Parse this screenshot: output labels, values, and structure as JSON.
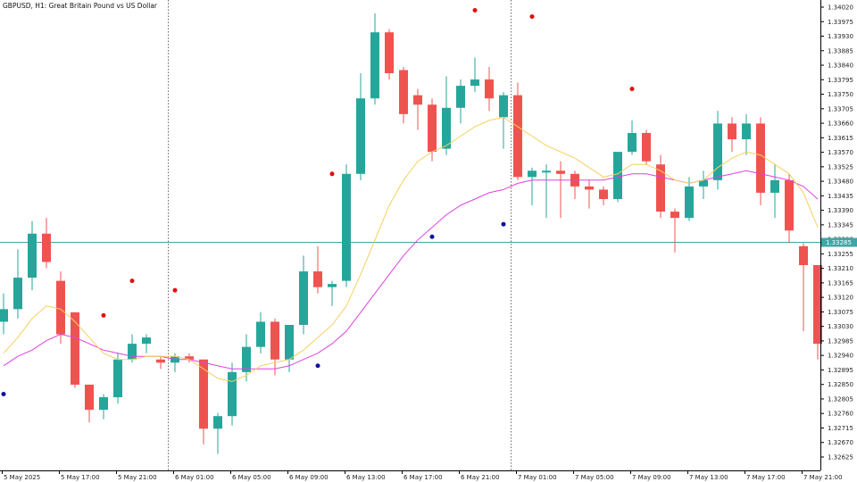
{
  "header": {
    "title": "GBPUSD, H1:  Great Britain Pound vs US Dollar"
  },
  "colors": {
    "background": "#ffffff",
    "bull": "#26a69a",
    "bear": "#ef5350",
    "fast_ma": "#f5d060",
    "slow_ma": "#e040e0",
    "bid_line": "#3fa6a6",
    "fractal_up": "#e01010",
    "fractal_down": "#1010a0",
    "separator": "#444444",
    "axis": "#000000"
  },
  "price_axis": {
    "labels": [
      "1.34020",
      "1.33975",
      "1.33930",
      "1.33885",
      "1.33840",
      "1.33795",
      "1.33750",
      "1.33705",
      "1.33660",
      "1.33615",
      "1.33570",
      "1.33525",
      "1.33480",
      "1.33435",
      "1.33390",
      "1.33345",
      "1.33300",
      "1.33255",
      "1.33210",
      "1.33165",
      "1.33120",
      "1.33075",
      "1.33030",
      "1.32985",
      "1.32940",
      "1.32895",
      "1.32850",
      "1.32805",
      "1.32760",
      "1.32715",
      "1.32670",
      "1.32625"
    ],
    "current_price": "1.33285"
  },
  "time_axis": {
    "labels": [
      "5 May 2025",
      "5 May 17:00",
      "5 May 21:00",
      "6 May 01:00",
      "6 May 05:00",
      "6 May 09:00",
      "6 May 13:00",
      "6 May 17:00",
      "6 May 21:00",
      "7 May 01:00",
      "7 May 05:00",
      "7 May 09:00",
      "7 May 13:00",
      "7 May 17:00",
      "7 May 21:00"
    ]
  },
  "chart_data": {
    "type": "candlestick",
    "symbol": "GBPUSD",
    "timeframe": "H1",
    "ylim": [
      1.326,
      1.3403
    ],
    "candles": [
      {
        "o": 1.3303,
        "h": 1.3312,
        "l": 1.3299,
        "c": 1.3307
      },
      {
        "o": 1.3307,
        "h": 1.3326,
        "l": 1.3304,
        "c": 1.3317
      },
      {
        "o": 1.3317,
        "h": 1.3335,
        "l": 1.3313,
        "c": 1.3331
      },
      {
        "o": 1.3331,
        "h": 1.3336,
        "l": 1.332,
        "c": 1.3322
      },
      {
        "o": 1.3316,
        "h": 1.3319,
        "l": 1.3296,
        "c": 1.3299
      },
      {
        "o": 1.3306,
        "h": 1.3306,
        "l": 1.3282,
        "c": 1.3283
      },
      {
        "o": 1.3283,
        "h": 1.3283,
        "l": 1.3271,
        "c": 1.3275
      },
      {
        "o": 1.3275,
        "h": 1.328,
        "l": 1.3272,
        "c": 1.3279
      },
      {
        "o": 1.3279,
        "h": 1.3293,
        "l": 1.3277,
        "c": 1.3291
      },
      {
        "o": 1.3291,
        "h": 1.3299,
        "l": 1.329,
        "c": 1.3296
      },
      {
        "o": 1.3296,
        "h": 1.3299,
        "l": 1.3293,
        "c": 1.3298
      },
      {
        "o": 1.3291,
        "h": 1.3292,
        "l": 1.3288,
        "c": 1.329
      },
      {
        "o": 1.329,
        "h": 1.3293,
        "l": 1.3287,
        "c": 1.3292
      },
      {
        "o": 1.3292,
        "h": 1.3293,
        "l": 1.329,
        "c": 1.3291
      },
      {
        "o": 1.3291,
        "h": 1.3291,
        "l": 1.3264,
        "c": 1.3269
      },
      {
        "o": 1.3269,
        "h": 1.3274,
        "l": 1.3261,
        "c": 1.3273
      },
      {
        "o": 1.3273,
        "h": 1.329,
        "l": 1.327,
        "c": 1.3287
      },
      {
        "o": 1.3287,
        "h": 1.3299,
        "l": 1.3284,
        "c": 1.3295
      },
      {
        "o": 1.3295,
        "h": 1.3306,
        "l": 1.3293,
        "c": 1.3303
      },
      {
        "o": 1.3303,
        "h": 1.3304,
        "l": 1.3286,
        "c": 1.3291
      },
      {
        "o": 1.3291,
        "h": 1.3302,
        "l": 1.3287,
        "c": 1.3302
      },
      {
        "o": 1.3302,
        "h": 1.3324,
        "l": 1.3299,
        "c": 1.3319
      },
      {
        "o": 1.3319,
        "h": 1.3327,
        "l": 1.3312,
        "c": 1.3314
      },
      {
        "o": 1.3314,
        "h": 1.3316,
        "l": 1.3308,
        "c": 1.3315
      },
      {
        "o": 1.3316,
        "h": 1.3353,
        "l": 1.3314,
        "c": 1.335
      },
      {
        "o": 1.335,
        "h": 1.3382,
        "l": 1.3348,
        "c": 1.3374
      },
      {
        "o": 1.3374,
        "h": 1.3401,
        "l": 1.3372,
        "c": 1.3395
      },
      {
        "o": 1.3395,
        "h": 1.3396,
        "l": 1.338,
        "c": 1.3382
      },
      {
        "o": 1.3383,
        "h": 1.3384,
        "l": 1.3366,
        "c": 1.3369
      },
      {
        "o": 1.3375,
        "h": 1.3377,
        "l": 1.3364,
        "c": 1.3372
      },
      {
        "o": 1.3372,
        "h": 1.3374,
        "l": 1.3354,
        "c": 1.3357
      },
      {
        "o": 1.3358,
        "h": 1.3381,
        "l": 1.3356,
        "c": 1.3371
      },
      {
        "o": 1.3371,
        "h": 1.338,
        "l": 1.3366,
        "c": 1.3378
      },
      {
        "o": 1.3378,
        "h": 1.3387,
        "l": 1.3376,
        "c": 1.338
      },
      {
        "o": 1.338,
        "h": 1.3384,
        "l": 1.337,
        "c": 1.3374
      },
      {
        "o": 1.3368,
        "h": 1.3376,
        "l": 1.3358,
        "c": 1.3375
      },
      {
        "o": 1.3375,
        "h": 1.3379,
        "l": 1.3348,
        "c": 1.3349
      },
      {
        "o": 1.3349,
        "h": 1.3352,
        "l": 1.334,
        "c": 1.3351
      },
      {
        "o": 1.3351,
        "h": 1.3353,
        "l": 1.3336,
        "c": 1.3351
      },
      {
        "o": 1.3351,
        "h": 1.3354,
        "l": 1.3336,
        "c": 1.335
      },
      {
        "o": 1.335,
        "h": 1.3351,
        "l": 1.3342,
        "c": 1.3346
      },
      {
        "o": 1.3346,
        "h": 1.3348,
        "l": 1.3339,
        "c": 1.3345
      },
      {
        "o": 1.3345,
        "h": 1.3346,
        "l": 1.334,
        "c": 1.3342
      },
      {
        "o": 1.3342,
        "h": 1.3356,
        "l": 1.3341,
        "c": 1.3357
      },
      {
        "o": 1.3357,
        "h": 1.3367,
        "l": 1.3356,
        "c": 1.3363
      },
      {
        "o": 1.3363,
        "h": 1.3364,
        "l": 1.3353,
        "c": 1.3354
      },
      {
        "o": 1.3353,
        "h": 1.3356,
        "l": 1.3336,
        "c": 1.3338
      },
      {
        "o": 1.3338,
        "h": 1.3339,
        "l": 1.3325,
        "c": 1.3336
      },
      {
        "o": 1.3336,
        "h": 1.3349,
        "l": 1.3335,
        "c": 1.3346
      },
      {
        "o": 1.3346,
        "h": 1.3351,
        "l": 1.3342,
        "c": 1.3348
      },
      {
        "o": 1.3348,
        "h": 1.337,
        "l": 1.3345,
        "c": 1.3366
      },
      {
        "o": 1.3366,
        "h": 1.3368,
        "l": 1.3357,
        "c": 1.3361
      },
      {
        "o": 1.3361,
        "h": 1.3369,
        "l": 1.3356,
        "c": 1.3366
      },
      {
        "o": 1.3366,
        "h": 1.3368,
        "l": 1.334,
        "c": 1.3344
      },
      {
        "o": 1.3344,
        "h": 1.3353,
        "l": 1.3336,
        "c": 1.3348
      },
      {
        "o": 1.3348,
        "h": 1.335,
        "l": 1.3328,
        "c": 1.3332
      },
      {
        "o": 1.3327,
        "h": 1.3328,
        "l": 1.33,
        "c": 1.3321
      },
      {
        "o": 1.3321,
        "h": 1.3321,
        "l": 1.3291,
        "c": 1.3296
      }
    ],
    "fast_ma": [
      1.3293,
      1.3298,
      1.3304,
      1.3308,
      1.3307,
      1.3303,
      1.3298,
      1.3293,
      1.3291,
      1.3291,
      1.3292,
      1.3292,
      1.3292,
      1.3291,
      1.3288,
      1.3285,
      1.3284,
      1.3286,
      1.3289,
      1.329,
      1.3291,
      1.3294,
      1.3298,
      1.3302,
      1.3308,
      1.3318,
      1.3329,
      1.334,
      1.3348,
      1.3354,
      1.3357,
      1.3359,
      1.3362,
      1.3365,
      1.3367,
      1.3368,
      1.3365,
      1.3362,
      1.3359,
      1.3357,
      1.3355,
      1.3352,
      1.3349,
      1.335,
      1.3353,
      1.3353,
      1.3351,
      1.3348,
      1.3347,
      1.3348,
      1.3352,
      1.3355,
      1.3357,
      1.3356,
      1.3353,
      1.335,
      1.3344,
      1.3333
    ],
    "slow_ma": [
      1.3289,
      1.3292,
      1.3294,
      1.3297,
      1.3299,
      1.3298,
      1.3296,
      1.3294,
      1.3293,
      1.3292,
      1.3292,
      1.3292,
      1.3291,
      1.3291,
      1.329,
      1.3289,
      1.3288,
      1.3288,
      1.3288,
      1.3288,
      1.3289,
      1.3291,
      1.3293,
      1.3296,
      1.33,
      1.3306,
      1.3312,
      1.3318,
      1.3324,
      1.3329,
      1.3333,
      1.3337,
      1.334,
      1.3342,
      1.3344,
      1.3345,
      1.3347,
      1.3348,
      1.3348,
      1.3348,
      1.3348,
      1.3348,
      1.3348,
      1.3349,
      1.335,
      1.335,
      1.3349,
      1.3348,
      1.3347,
      1.3348,
      1.3349,
      1.335,
      1.3351,
      1.335,
      1.3349,
      1.3348,
      1.3346,
      1.3342
    ],
    "fractals": [
      {
        "i": 0,
        "type": "down",
        "price": 1.328
      },
      {
        "i": 7,
        "type": "up",
        "price": 1.3305
      },
      {
        "i": 9,
        "type": "up",
        "price": 1.3316
      },
      {
        "i": 12,
        "type": "up",
        "price": 1.3313
      },
      {
        "i": 22,
        "type": "down",
        "price": 1.3289
      },
      {
        "i": 23,
        "type": "up",
        "price": 1.335
      },
      {
        "i": 30,
        "type": "down",
        "price": 1.333
      },
      {
        "i": 33,
        "type": "up",
        "price": 1.3402
      },
      {
        "i": 35,
        "type": "down",
        "price": 1.3334
      },
      {
        "i": 37,
        "type": "up",
        "price": 1.34
      },
      {
        "i": 44,
        "type": "up",
        "price": 1.3377
      }
    ],
    "separators_at_candle": [
      11,
      35
    ]
  }
}
